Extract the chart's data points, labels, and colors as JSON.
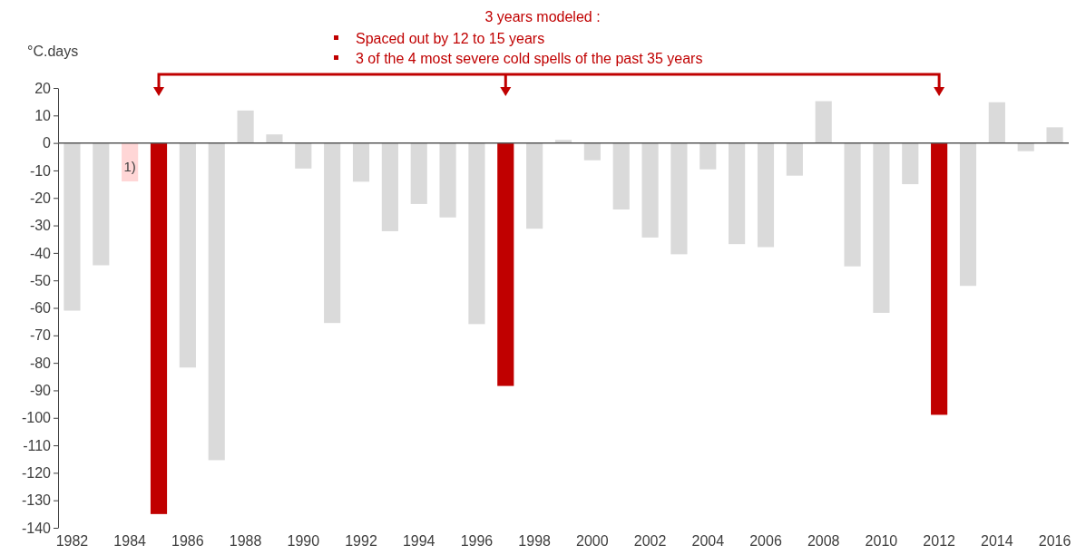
{
  "chart_data": {
    "type": "bar",
    "title": "3 years modeled :",
    "ylabel": "°C.days",
    "annotations": [
      "Spaced out by 12 to 15 years",
      "3 of the 4 most severe cold spells of the past 35 years",
      "1)"
    ],
    "categories": [
      "1982",
      null,
      "1984",
      null,
      "1986",
      null,
      "1988",
      null,
      "1990",
      null,
      "1992",
      null,
      "1994",
      null,
      "1996",
      null,
      "1998",
      null,
      "2000",
      null,
      "2002",
      null,
      "2004",
      null,
      "2006",
      null,
      "2008",
      null,
      "2010",
      null,
      "2012",
      null,
      "2014",
      null,
      "2016"
    ],
    "values": [
      -61,
      -44.5,
      -14,
      -135,
      -81.7,
      -115.4,
      11.8,
      3.1,
      -9.3,
      -65.5,
      -14.1,
      -32.1,
      -22.2,
      -27.1,
      -65.9,
      -88.4,
      -31.2,
      1.1,
      -6.3,
      -24.2,
      -34.4,
      -40.5,
      -9.6,
      -36.8,
      -37.9,
      -11.9,
      15.2,
      -44.9,
      -61.8,
      -15,
      -98.9,
      -52,
      14.8,
      -3,
      5.7
    ],
    "colors": [
      "#dadada",
      "#dadada",
      "#ffd6d6",
      "#c00000",
      "#dadada",
      "#dadada",
      "#dadada",
      "#dadada",
      "#dadada",
      "#dadada",
      "#dadada",
      "#dadada",
      "#dadada",
      "#dadada",
      "#dadada",
      "#c00000",
      "#dadada",
      "#dadada",
      "#dadada",
      "#dadada",
      "#dadada",
      "#dadada",
      "#dadada",
      "#dadada",
      "#dadada",
      "#dadada",
      "#dadada",
      "#dadada",
      "#dadada",
      "#dadada",
      "#c00000",
      "#dadada",
      "#dadada",
      "#dadada",
      "#dadada"
    ],
    "ylim": [
      -140,
      20
    ],
    "yticks": [
      20,
      10,
      0,
      -10,
      -20,
      -30,
      -40,
      -50,
      -60,
      -70,
      -80,
      -90,
      -100,
      -110,
      -120,
      -130,
      -140
    ]
  }
}
